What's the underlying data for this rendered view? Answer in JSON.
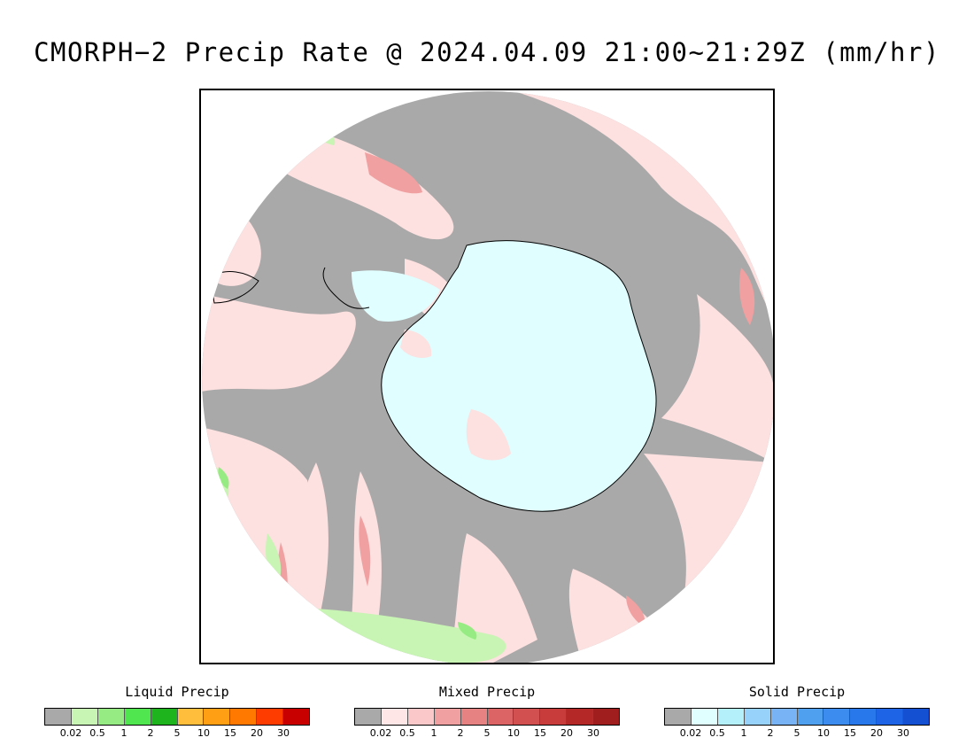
{
  "title": "CMORPH−2 Precip Rate @ 2024.04.09 21:00~21:29Z (mm/hr)",
  "colors": {
    "no_precip": "#a9a9a9",
    "ocean_background_light": "#fde0e0",
    "ice": "#e0feff",
    "coast": "#000000"
  },
  "legends": [
    {
      "title": "Liquid Precip",
      "colors": [
        "#a9a9a9",
        "#c8f5b4",
        "#96eb82",
        "#50e650",
        "#1eb41e",
        "#ffbe3c",
        "#ffa014",
        "#ff7800",
        "#ff3c00",
        "#c80000"
      ],
      "ticks": [
        "0.02",
        "0.5",
        "1",
        "2",
        "5",
        "10",
        "15",
        "20",
        "30"
      ]
    },
    {
      "title": "Mixed Precip",
      "colors": [
        "#a9a9a9",
        "#ffe6e6",
        "#fac8c8",
        "#f0a0a0",
        "#e68282",
        "#dc6464",
        "#d25050",
        "#c83c3c",
        "#b42828",
        "#a01e1e"
      ],
      "ticks": [
        "0.02",
        "0.5",
        "1",
        "2",
        "5",
        "10",
        "15",
        "20",
        "30"
      ]
    },
    {
      "title": "Solid Precip",
      "colors": [
        "#a9a9a9",
        "#e0ffff",
        "#b4f0fa",
        "#96d2fa",
        "#78b4f5",
        "#50a0f0",
        "#3c8cf0",
        "#2878eb",
        "#1e64e6",
        "#1450d2"
      ],
      "ticks": [
        "0.02",
        "0.5",
        "1",
        "2",
        "5",
        "10",
        "15",
        "20",
        "30"
      ]
    }
  ]
}
